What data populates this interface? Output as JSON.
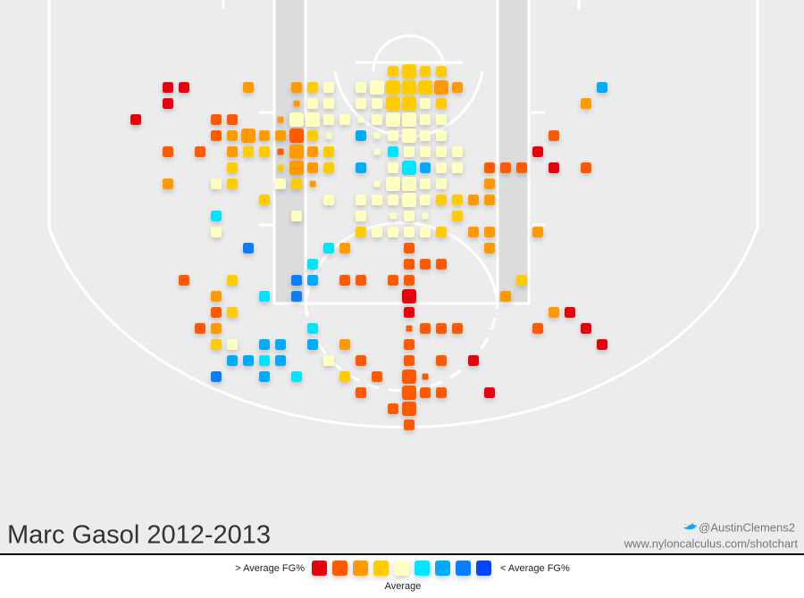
{
  "chart_data": {
    "type": "scatter",
    "title": "Marc Gasol 2012-2013",
    "credit": "@AustinClemens2",
    "source": "www.nyloncalculus.com/shotchart",
    "legend": {
      "left_label": "> Average FG%",
      "right_label": "< Average FG%",
      "center_label": "Average",
      "colors": [
        "#e8000b",
        "#ff5a00",
        "#ff9a00",
        "#ffcc00",
        "#ffffc2",
        "#00e5ff",
        "#00aaff",
        "#0a7dff",
        "#0044ff"
      ]
    },
    "points": [
      [
        16,
        -1,
        2,
        3
      ],
      [
        17,
        -1,
        3,
        3
      ],
      [
        18,
        -1,
        2,
        3
      ],
      [
        19,
        -1,
        2,
        3
      ],
      [
        2,
        0,
        2,
        0
      ],
      [
        3,
        0,
        2,
        0
      ],
      [
        7,
        0,
        2,
        2
      ],
      [
        10,
        0,
        2,
        2
      ],
      [
        11,
        0,
        2,
        3
      ],
      [
        12,
        0,
        2,
        4
      ],
      [
        14,
        0,
        2,
        4
      ],
      [
        15,
        0,
        3,
        4
      ],
      [
        16,
        0,
        3,
        3
      ],
      [
        17,
        0,
        3,
        3
      ],
      [
        18,
        0,
        3,
        3
      ],
      [
        19,
        0,
        3,
        2
      ],
      [
        20,
        0,
        2,
        2
      ],
      [
        29,
        0,
        2,
        6
      ],
      [
        2,
        1,
        2,
        0
      ],
      [
        10,
        1,
        1,
        2
      ],
      [
        11,
        1,
        2,
        4
      ],
      [
        12,
        1,
        2,
        4
      ],
      [
        14,
        1,
        2,
        4
      ],
      [
        15,
        1,
        2,
        4
      ],
      [
        16,
        1,
        3,
        3
      ],
      [
        17,
        1,
        3,
        3
      ],
      [
        18,
        1,
        2,
        4
      ],
      [
        19,
        1,
        2,
        3
      ],
      [
        28,
        1,
        2,
        2
      ],
      [
        0,
        2,
        2,
        0
      ],
      [
        5,
        2,
        2,
        1
      ],
      [
        6,
        2,
        2,
        1
      ],
      [
        9,
        2,
        1,
        2
      ],
      [
        10,
        2,
        3,
        4
      ],
      [
        11,
        2,
        3,
        4
      ],
      [
        12,
        2,
        2,
        4
      ],
      [
        13,
        2,
        2,
        4
      ],
      [
        14,
        2,
        1,
        4
      ],
      [
        15,
        2,
        2,
        4
      ],
      [
        16,
        2,
        3,
        4
      ],
      [
        17,
        2,
        3,
        4
      ],
      [
        18,
        2,
        2,
        4
      ],
      [
        19,
        2,
        2,
        4
      ],
      [
        5,
        3,
        2,
        1
      ],
      [
        6,
        3,
        2,
        2
      ],
      [
        7,
        3,
        3,
        2
      ],
      [
        8,
        3,
        2,
        2
      ],
      [
        9,
        3,
        2,
        2
      ],
      [
        10,
        3,
        3,
        1
      ],
      [
        11,
        3,
        2,
        3
      ],
      [
        12,
        3,
        1,
        4
      ],
      [
        14,
        3,
        2,
        6
      ],
      [
        15,
        3,
        1,
        4
      ],
      [
        16,
        3,
        2,
        4
      ],
      [
        17,
        3,
        3,
        4
      ],
      [
        18,
        3,
        2,
        4
      ],
      [
        19,
        3,
        2,
        4
      ],
      [
        26,
        3,
        2,
        1
      ],
      [
        2,
        4,
        2,
        1
      ],
      [
        4,
        4,
        2,
        1
      ],
      [
        6,
        4,
        2,
        2
      ],
      [
        7,
        4,
        2,
        3
      ],
      [
        8,
        4,
        2,
        3
      ],
      [
        9,
        4,
        1,
        1
      ],
      [
        10,
        4,
        3,
        2
      ],
      [
        11,
        4,
        2,
        2
      ],
      [
        12,
        4,
        2,
        3
      ],
      [
        15,
        4,
        1,
        4
      ],
      [
        16,
        4,
        2,
        5
      ],
      [
        17,
        4,
        2,
        4
      ],
      [
        18,
        4,
        2,
        4
      ],
      [
        19,
        4,
        2,
        4
      ],
      [
        20,
        4,
        2,
        4
      ],
      [
        25,
        4,
        2,
        0
      ],
      [
        6,
        5,
        2,
        3
      ],
      [
        9,
        5,
        1,
        3
      ],
      [
        10,
        5,
        3,
        2
      ],
      [
        11,
        5,
        2,
        2
      ],
      [
        12,
        5,
        2,
        3
      ],
      [
        14,
        5,
        2,
        6
      ],
      [
        16,
        5,
        2,
        4
      ],
      [
        17,
        5,
        3,
        5
      ],
      [
        18,
        5,
        2,
        6
      ],
      [
        19,
        5,
        2,
        4
      ],
      [
        20,
        5,
        2,
        4
      ],
      [
        22,
        5,
        2,
        1
      ],
      [
        23,
        5,
        2,
        1
      ],
      [
        24,
        5,
        2,
        1
      ],
      [
        26,
        5,
        2,
        0
      ],
      [
        28,
        5,
        2,
        1
      ],
      [
        2,
        6,
        2,
        2
      ],
      [
        5,
        6,
        2,
        4
      ],
      [
        6,
        6,
        2,
        3
      ],
      [
        9,
        6,
        2,
        4
      ],
      [
        10,
        6,
        2,
        3
      ],
      [
        11,
        6,
        1,
        2
      ],
      [
        15,
        6,
        1,
        4
      ],
      [
        16,
        6,
        3,
        4
      ],
      [
        17,
        6,
        3,
        4
      ],
      [
        18,
        6,
        2,
        4
      ],
      [
        19,
        6,
        2,
        4
      ],
      [
        22,
        6,
        2,
        2
      ],
      [
        8,
        7,
        2,
        3
      ],
      [
        12,
        7,
        2,
        4
      ],
      [
        14,
        7,
        2,
        4
      ],
      [
        15,
        7,
        2,
        4
      ],
      [
        16,
        7,
        2,
        4
      ],
      [
        17,
        7,
        3,
        4
      ],
      [
        18,
        7,
        2,
        4
      ],
      [
        19,
        7,
        2,
        3
      ],
      [
        20,
        7,
        2,
        3
      ],
      [
        21,
        7,
        2,
        2
      ],
      [
        22,
        7,
        2,
        2
      ],
      [
        5,
        8,
        2,
        5
      ],
      [
        10,
        8,
        2,
        4
      ],
      [
        14,
        8,
        2,
        4
      ],
      [
        16,
        8,
        1,
        4
      ],
      [
        17,
        8,
        2,
        4
      ],
      [
        18,
        8,
        1,
        4
      ],
      [
        20,
        8,
        2,
        3
      ],
      [
        5,
        9,
        2,
        4
      ],
      [
        14,
        9,
        2,
        3
      ],
      [
        15,
        9,
        2,
        4
      ],
      [
        16,
        9,
        2,
        4
      ],
      [
        17,
        9,
        2,
        4
      ],
      [
        18,
        9,
        2,
        4
      ],
      [
        19,
        9,
        2,
        3
      ],
      [
        21,
        9,
        2,
        2
      ],
      [
        22,
        9,
        2,
        2
      ],
      [
        25,
        9,
        2,
        2
      ],
      [
        7,
        10,
        2,
        7
      ],
      [
        12,
        10,
        2,
        5
      ],
      [
        13,
        10,
        2,
        2
      ],
      [
        17,
        10,
        2,
        1
      ],
      [
        22,
        10,
        2,
        2
      ],
      [
        11,
        11,
        2,
        5
      ],
      [
        17,
        11,
        2,
        1
      ],
      [
        18,
        11,
        2,
        1
      ],
      [
        19,
        11,
        2,
        1
      ],
      [
        3,
        12,
        2,
        1
      ],
      [
        6,
        12,
        2,
        3
      ],
      [
        10,
        12,
        2,
        7
      ],
      [
        11,
        12,
        2,
        6
      ],
      [
        13,
        12,
        2,
        1
      ],
      [
        14,
        12,
        2,
        1
      ],
      [
        16,
        12,
        2,
        1
      ],
      [
        17,
        12,
        2,
        1
      ],
      [
        24,
        12,
        2,
        3
      ],
      [
        5,
        13,
        2,
        2
      ],
      [
        8,
        13,
        2,
        5
      ],
      [
        10,
        13,
        2,
        7
      ],
      [
        17,
        13,
        3,
        0
      ],
      [
        23,
        13,
        2,
        2
      ],
      [
        5,
        14,
        2,
        1
      ],
      [
        6,
        14,
        2,
        3
      ],
      [
        17,
        14,
        2,
        0
      ],
      [
        26,
        14,
        2,
        2
      ],
      [
        27,
        14,
        2,
        0
      ],
      [
        4,
        15,
        2,
        1
      ],
      [
        5,
        15,
        2,
        2
      ],
      [
        11,
        15,
        2,
        5
      ],
      [
        17,
        15,
        1,
        1
      ],
      [
        18,
        15,
        2,
        1
      ],
      [
        19,
        15,
        2,
        1
      ],
      [
        20,
        15,
        2,
        1
      ],
      [
        25,
        15,
        2,
        1
      ],
      [
        28,
        15,
        2,
        0
      ],
      [
        5,
        16,
        2,
        3
      ],
      [
        6,
        16,
        2,
        4
      ],
      [
        8,
        16,
        2,
        6
      ],
      [
        9,
        16,
        2,
        6
      ],
      [
        11,
        16,
        2,
        6
      ],
      [
        13,
        16,
        2,
        2
      ],
      [
        17,
        16,
        2,
        1
      ],
      [
        29,
        16,
        2,
        0
      ],
      [
        6,
        17,
        2,
        6
      ],
      [
        7,
        17,
        2,
        6
      ],
      [
        8,
        17,
        2,
        5
      ],
      [
        9,
        17,
        2,
        6
      ],
      [
        12,
        17,
        2,
        4
      ],
      [
        14,
        17,
        2,
        1
      ],
      [
        17,
        17,
        2,
        1
      ],
      [
        19,
        17,
        2,
        1
      ],
      [
        21,
        17,
        2,
        0
      ],
      [
        5,
        18,
        2,
        7
      ],
      [
        8,
        18,
        2,
        6
      ],
      [
        10,
        18,
        2,
        5
      ],
      [
        13,
        18,
        2,
        3
      ],
      [
        15,
        18,
        2,
        1
      ],
      [
        17,
        18,
        3,
        1
      ],
      [
        18,
        18,
        1,
        1
      ],
      [
        14,
        19,
        2,
        1
      ],
      [
        17,
        19,
        3,
        1
      ],
      [
        18,
        19,
        2,
        1
      ],
      [
        19,
        19,
        2,
        1
      ],
      [
        22,
        19,
        2,
        0
      ],
      [
        16,
        20,
        2,
        1
      ],
      [
        17,
        20,
        3,
        1
      ],
      [
        17,
        21,
        2,
        1
      ]
    ]
  }
}
